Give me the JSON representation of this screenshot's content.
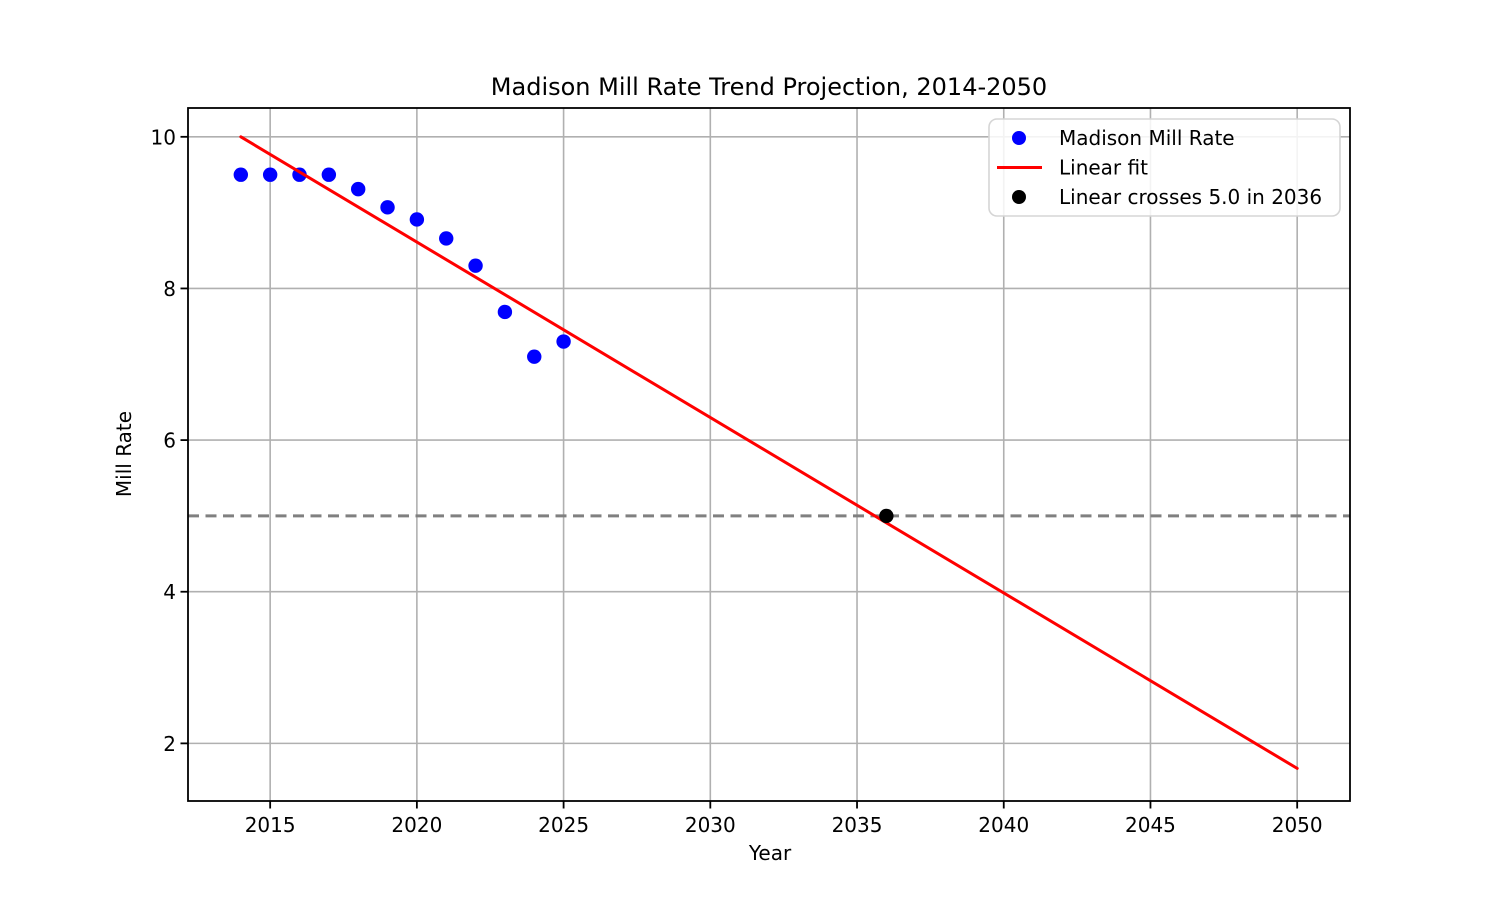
{
  "chart_data": {
    "type": "scatter",
    "title": "Madison Mill Rate Trend Projection, 2014-2050",
    "xlabel": "Year",
    "ylabel": "Mill Rate",
    "xlim": [
      2012.2,
      2051.8
    ],
    "ylim": [
      1.24,
      10.38
    ],
    "x_ticks": [
      2015,
      2020,
      2025,
      2030,
      2035,
      2040,
      2045,
      2050
    ],
    "y_ticks": [
      2,
      4,
      6,
      8,
      10
    ],
    "grid": true,
    "grid_color": "#b0b0b0",
    "background_color": "#ffffff",
    "spine_color": "#000000",
    "legend_position": "upper right",
    "series": [
      {
        "name": "Madison Mill Rate",
        "type": "scatter",
        "color": "#0000ff",
        "x": [
          2014,
          2015,
          2016,
          2017,
          2018,
          2019,
          2020,
          2021,
          2022,
          2023,
          2024,
          2025
        ],
        "y": [
          9.5,
          9.5,
          9.5,
          9.5,
          9.31,
          9.07,
          8.91,
          8.66,
          8.3,
          7.69,
          7.1,
          7.3
        ]
      },
      {
        "name": "Linear fit",
        "type": "line",
        "color": "#ff0000",
        "x": [
          2014,
          2050
        ],
        "y": [
          10.0,
          1.67
        ]
      },
      {
        "name": "Linear crosses 5.0 in 2036",
        "type": "scatter",
        "color": "#000000",
        "x": [
          2036
        ],
        "y": [
          5.0
        ]
      }
    ],
    "reference_line": {
      "y": 5.0,
      "color": "#808080",
      "style": "dashed"
    }
  }
}
